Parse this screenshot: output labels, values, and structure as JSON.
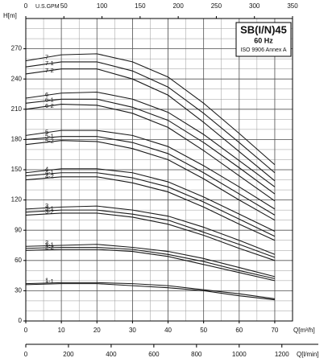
{
  "chart_data": {
    "type": "line",
    "title": "SB(I/N)45",
    "subtitle": "60 Hz",
    "annotation": "ISO 9906 Annex A",
    "x_label": "Q[m³/h]",
    "y_label": "H[m]",
    "x": [
      0,
      10,
      20,
      30,
      40,
      50,
      60,
      70
    ],
    "xlim": [
      0,
      75
    ],
    "xticks": [
      0,
      10,
      20,
      30,
      40,
      50,
      60,
      70
    ],
    "ylim": [
      0,
      300
    ],
    "yticks": [
      0,
      30,
      60,
      90,
      120,
      150,
      180,
      210,
      240,
      270
    ],
    "grid": true,
    "minor_grid": {
      "x_step": 5,
      "y_step": 10
    },
    "color": "#1a1a1a",
    "top_axis": {
      "label": "U.S.GPM",
      "lim": [
        0,
        350
      ],
      "ticks": [
        0,
        50,
        100,
        150,
        200,
        250,
        300,
        350
      ]
    },
    "bottom_axis2": {
      "label": "Q[l/min]",
      "lim": [
        0,
        1250
      ],
      "ticks": [
        0,
        200,
        400,
        600,
        800,
        1000,
        1200
      ]
    },
    "series": [
      {
        "name": "7",
        "values": [
          258,
          264,
          265,
          257,
          242,
          216,
          186,
          155
        ]
      },
      {
        "name": "7-1",
        "values": [
          252,
          257,
          257,
          248,
          232,
          206,
          177,
          147
        ]
      },
      {
        "name": "7-2",
        "values": [
          245,
          250,
          250,
          240,
          224,
          197,
          168,
          139
        ]
      },
      {
        "name": "6",
        "values": [
          221,
          226,
          227,
          220,
          207,
          185,
          159,
          133
        ]
      },
      {
        "name": "6-1",
        "values": [
          216,
          220,
          220,
          212,
          199,
          177,
          152,
          126
        ]
      },
      {
        "name": "6-2",
        "values": [
          210,
          215,
          214,
          206,
          192,
          169,
          144,
          119
        ]
      },
      {
        "name": "5",
        "values": [
          184,
          189,
          189,
          184,
          173,
          154,
          133,
          111
        ]
      },
      {
        "name": "5-1",
        "values": [
          180,
          183,
          183,
          177,
          166,
          147,
          126,
          105
        ]
      },
      {
        "name": "5-2",
        "values": [
          175,
          179,
          178,
          171,
          160,
          141,
          120,
          100
        ]
      },
      {
        "name": "4",
        "values": [
          147,
          151,
          151,
          147,
          138,
          123,
          106,
          89
        ]
      },
      {
        "name": "4-1",
        "values": [
          144,
          147,
          147,
          142,
          133,
          118,
          101,
          84
        ]
      },
      {
        "name": "4-2",
        "values": [
          140,
          143,
          143,
          137,
          128,
          113,
          96,
          80
        ]
      },
      {
        "name": "3",
        "values": [
          111,
          113,
          114,
          110,
          104,
          93,
          80,
          66
        ]
      },
      {
        "name": "3-1",
        "values": [
          108,
          110,
          110,
          106,
          100,
          88,
          76,
          63
        ]
      },
      {
        "name": "3-2",
        "values": [
          105,
          107,
          107,
          103,
          96,
          85,
          72,
          60
        ]
      },
      {
        "name": "2",
        "values": [
          74,
          75,
          76,
          73,
          69,
          62,
          53,
          44
        ]
      },
      {
        "name": "2-1",
        "values": [
          72,
          73,
          73,
          71,
          66,
          59,
          50,
          42
        ]
      },
      {
        "name": "2-2",
        "values": [
          70,
          71,
          71,
          69,
          64,
          56,
          48,
          40
        ]
      },
      {
        "name": "1",
        "values": [
          37,
          38,
          38,
          37,
          35,
          31,
          27,
          22
        ]
      },
      {
        "name": "1-1",
        "values": [
          36,
          37,
          37,
          35,
          33,
          30,
          25,
          21
        ]
      }
    ]
  }
}
